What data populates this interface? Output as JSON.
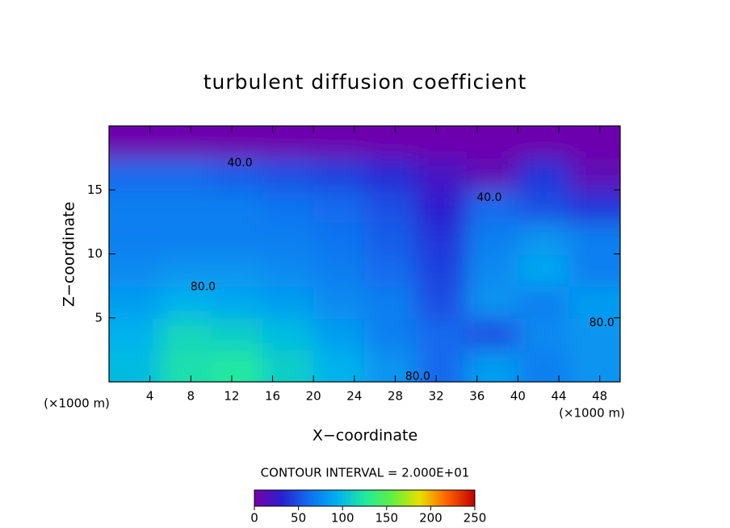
{
  "chart_data": {
    "type": "heatmap",
    "title": "turbulent diffusion coefficient",
    "x_label": "X−coordinate",
    "y_label": "Z−coordinate",
    "x_unit_labels": [
      "(×1000 m)",
      "(×1000 m)"
    ],
    "xlim": [
      0,
      50
    ],
    "ylim": [
      0,
      20
    ],
    "xticks": [
      4,
      8,
      12,
      16,
      20,
      24,
      28,
      32,
      36,
      40,
      44,
      48
    ],
    "yticks": [
      5,
      10,
      15
    ],
    "x": [
      2.5,
      7.5,
      12.5,
      17.5,
      22.5,
      27.5,
      32.5,
      37.5,
      42.5,
      47.5
    ],
    "y": [
      1.25,
      3.75,
      6.25,
      8.75,
      11.25,
      13.75,
      16.25,
      18.75
    ],
    "z": [
      [
        100,
        120,
        125,
        110,
        95,
        80,
        60,
        85,
        70,
        80
      ],
      [
        95,
        115,
        110,
        100,
        85,
        70,
        60,
        50,
        75,
        80
      ],
      [
        85,
        95,
        90,
        85,
        75,
        70,
        50,
        80,
        70,
        85
      ],
      [
        75,
        80,
        80,
        75,
        70,
        60,
        45,
        75,
        90,
        70
      ],
      [
        70,
        70,
        70,
        70,
        65,
        55,
        40,
        70,
        80,
        70
      ],
      [
        70,
        70,
        70,
        65,
        60,
        50,
        30,
        60,
        50,
        40
      ],
      [
        60,
        60,
        55,
        50,
        45,
        35,
        20,
        10,
        40,
        10
      ],
      [
        5,
        5,
        5,
        5,
        5,
        5,
        5,
        5,
        5,
        5
      ]
    ],
    "colorscale": [
      "#7a00a8",
      "#2a20d0",
      "#1070f0",
      "#00b0f0",
      "#20e8a0",
      "#60f040",
      "#e8e000",
      "#ff6000",
      "#c00000"
    ],
    "colorbar_lim": [
      0,
      250
    ],
    "colorbar_ticks": [
      0,
      50,
      100,
      150,
      200,
      250
    ],
    "contour_interval_label": "CONTOUR INTERVAL = 2.000E+01",
    "annotations": [
      {
        "text": "40.0",
        "x": 12.8,
        "y": 17.1
      },
      {
        "text": "40.0",
        "x": 37.2,
        "y": 14.4
      },
      {
        "text": "80.0",
        "x": 9.2,
        "y": 7.4
      },
      {
        "text": "80.0",
        "x": 30.2,
        "y": 0.4
      },
      {
        "text": "80.0",
        "x": 48.2,
        "y": 4.6
      }
    ]
  }
}
